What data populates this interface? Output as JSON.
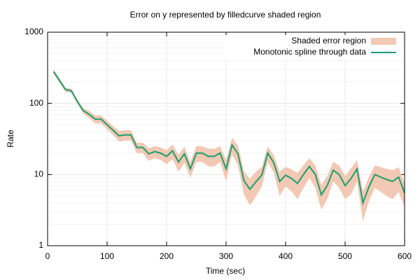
{
  "chart_data": {
    "type": "line",
    "title": "Error on y represented by filledcurve shaded region",
    "x_label": "Time (sec)",
    "y_label": "Rate",
    "log_y": true,
    "grid": true,
    "xlim": [
      0,
      600
    ],
    "xticks": [
      0,
      100,
      200,
      300,
      400,
      500,
      600
    ],
    "ylim": [
      1,
      1000
    ],
    "yticks": [
      1,
      10,
      100,
      1000
    ],
    "legend": "top-right",
    "x": [
      10,
      20,
      30,
      40,
      50,
      60,
      70,
      80,
      90,
      100,
      110,
      120,
      130,
      140,
      150,
      160,
      170,
      180,
      190,
      200,
      210,
      220,
      230,
      240,
      250,
      260,
      270,
      280,
      290,
      300,
      310,
      320,
      330,
      340,
      350,
      360,
      370,
      380,
      390,
      400,
      410,
      420,
      430,
      440,
      450,
      460,
      470,
      480,
      490,
      500,
      510,
      520,
      530,
      540,
      550,
      560,
      570,
      580,
      590,
      600
    ],
    "series": [
      {
        "name": "Monotonic spline through data",
        "error_name": "Shaded error region",
        "color": "#1b9e6e",
        "error_color": "#f2c9b4",
        "values": [
          280,
          210,
          156,
          150,
          106,
          79,
          70,
          60,
          60,
          50,
          42,
          35,
          36,
          36,
          24,
          24,
          19.5,
          21,
          20,
          18,
          21.5,
          15,
          19.5,
          12,
          20,
          20,
          18,
          18,
          20,
          12,
          26,
          19.5,
          8.2,
          6.2,
          7.9,
          9.8,
          20,
          14.7,
          8,
          9.8,
          8.8,
          7.5,
          10,
          13,
          10,
          5.2,
          7,
          11.5,
          10,
          7,
          8.8,
          12,
          4,
          6.7,
          10,
          9.2,
          8.5,
          8,
          9.2,
          5.5
        ],
        "errors": [
          20,
          15,
          10,
          10,
          8,
          7,
          8,
          8,
          8,
          7,
          6,
          6,
          6,
          6,
          4,
          4,
          4,
          4,
          4,
          4,
          5,
          4,
          5,
          3,
          5,
          5,
          5,
          5,
          5,
          4,
          7,
          6,
          3,
          2.5,
          3,
          3,
          5,
          4,
          3,
          3,
          3,
          3,
          3.5,
          4,
          3.5,
          2,
          2.5,
          3.5,
          3.5,
          2.5,
          3.5,
          4,
          1.8,
          2.5,
          3.5,
          3.5,
          3.5,
          3.5,
          3.5,
          2
        ]
      }
    ]
  }
}
